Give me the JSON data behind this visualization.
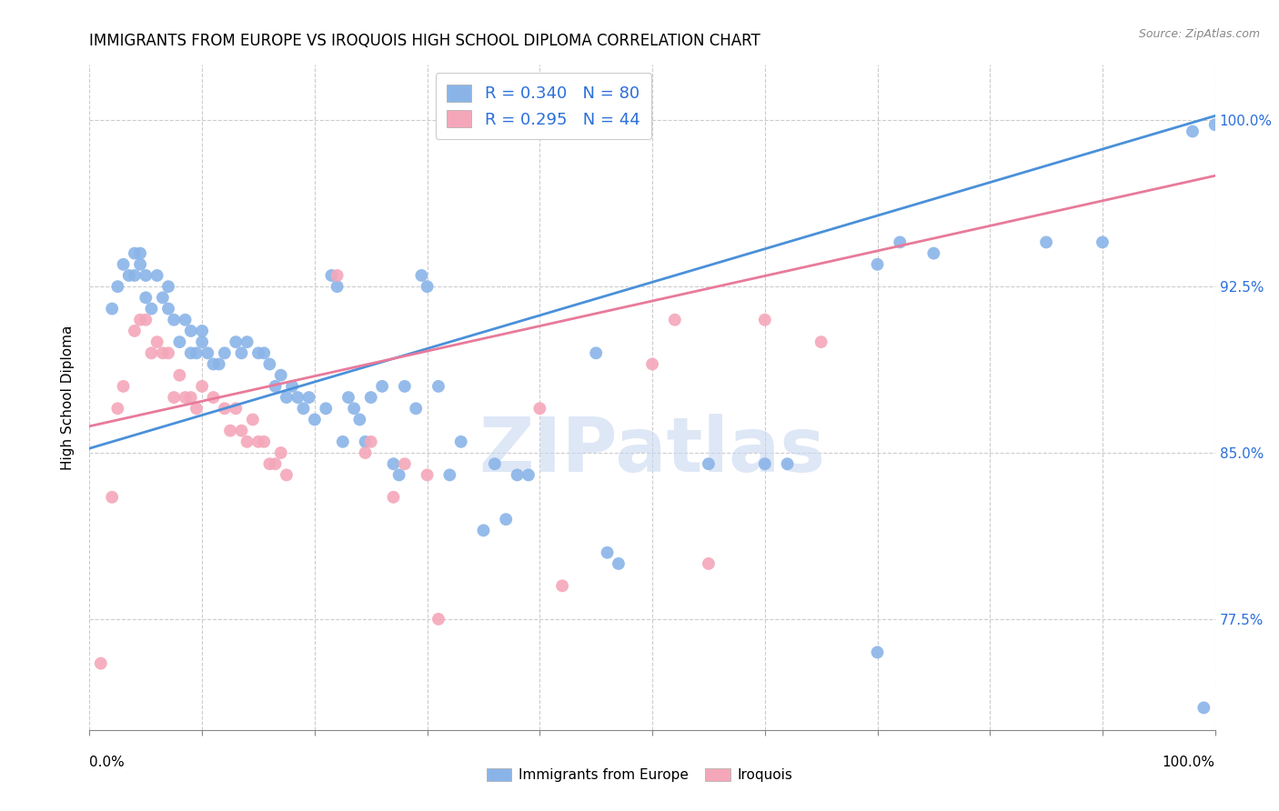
{
  "title": "IMMIGRANTS FROM EUROPE VS IROQUOIS HIGH SCHOOL DIPLOMA CORRELATION CHART",
  "source": "Source: ZipAtlas.com",
  "ylabel": "High School Diploma",
  "ytick_labels": [
    "77.5%",
    "85.0%",
    "92.5%",
    "100.0%"
  ],
  "ytick_values": [
    0.775,
    0.85,
    0.925,
    1.0
  ],
  "xlim": [
    0.0,
    1.0
  ],
  "ylim": [
    0.725,
    1.025
  ],
  "legend_blue_label": "R = 0.340   N = 80",
  "legend_pink_label": "R = 0.295   N = 44",
  "legend_r_color": "#2b6fd9",
  "blue_color": "#8ab4e8",
  "pink_color": "#f4a7b9",
  "blue_line_color": "#4a90d9",
  "pink_line_color": "#e87a9a",
  "watermark": "ZIPatlas",
  "blue_scatter": [
    [
      0.02,
      0.915
    ],
    [
      0.025,
      0.925
    ],
    [
      0.03,
      0.935
    ],
    [
      0.035,
      0.93
    ],
    [
      0.04,
      0.93
    ],
    [
      0.04,
      0.94
    ],
    [
      0.045,
      0.935
    ],
    [
      0.045,
      0.94
    ],
    [
      0.05,
      0.92
    ],
    [
      0.05,
      0.93
    ],
    [
      0.055,
      0.915
    ],
    [
      0.06,
      0.93
    ],
    [
      0.065,
      0.92
    ],
    [
      0.07,
      0.925
    ],
    [
      0.07,
      0.915
    ],
    [
      0.075,
      0.91
    ],
    [
      0.08,
      0.9
    ],
    [
      0.085,
      0.91
    ],
    [
      0.09,
      0.895
    ],
    [
      0.09,
      0.905
    ],
    [
      0.095,
      0.895
    ],
    [
      0.1,
      0.9
    ],
    [
      0.1,
      0.905
    ],
    [
      0.105,
      0.895
    ],
    [
      0.11,
      0.89
    ],
    [
      0.115,
      0.89
    ],
    [
      0.12,
      0.895
    ],
    [
      0.13,
      0.9
    ],
    [
      0.135,
      0.895
    ],
    [
      0.14,
      0.9
    ],
    [
      0.15,
      0.895
    ],
    [
      0.155,
      0.895
    ],
    [
      0.16,
      0.89
    ],
    [
      0.165,
      0.88
    ],
    [
      0.17,
      0.885
    ],
    [
      0.175,
      0.875
    ],
    [
      0.18,
      0.88
    ],
    [
      0.185,
      0.875
    ],
    [
      0.19,
      0.87
    ],
    [
      0.195,
      0.875
    ],
    [
      0.2,
      0.865
    ],
    [
      0.21,
      0.87
    ],
    [
      0.215,
      0.93
    ],
    [
      0.22,
      0.925
    ],
    [
      0.225,
      0.855
    ],
    [
      0.23,
      0.875
    ],
    [
      0.235,
      0.87
    ],
    [
      0.24,
      0.865
    ],
    [
      0.245,
      0.855
    ],
    [
      0.25,
      0.875
    ],
    [
      0.26,
      0.88
    ],
    [
      0.27,
      0.845
    ],
    [
      0.275,
      0.84
    ],
    [
      0.28,
      0.88
    ],
    [
      0.29,
      0.87
    ],
    [
      0.295,
      0.93
    ],
    [
      0.3,
      0.925
    ],
    [
      0.31,
      0.88
    ],
    [
      0.32,
      0.84
    ],
    [
      0.33,
      0.855
    ],
    [
      0.35,
      0.815
    ],
    [
      0.36,
      0.845
    ],
    [
      0.37,
      0.82
    ],
    [
      0.38,
      0.84
    ],
    [
      0.39,
      0.84
    ],
    [
      0.45,
      0.895
    ],
    [
      0.46,
      0.805
    ],
    [
      0.47,
      0.8
    ],
    [
      0.55,
      0.845
    ],
    [
      0.6,
      0.845
    ],
    [
      0.62,
      0.845
    ],
    [
      0.7,
      0.935
    ],
    [
      0.7,
      0.76
    ],
    [
      0.72,
      0.945
    ],
    [
      0.75,
      0.94
    ],
    [
      0.85,
      0.945
    ],
    [
      0.9,
      0.945
    ],
    [
      0.98,
      0.995
    ],
    [
      0.99,
      0.735
    ],
    [
      1.0,
      0.998
    ]
  ],
  "pink_scatter": [
    [
      0.01,
      0.755
    ],
    [
      0.02,
      0.83
    ],
    [
      0.025,
      0.87
    ],
    [
      0.03,
      0.88
    ],
    [
      0.04,
      0.905
    ],
    [
      0.045,
      0.91
    ],
    [
      0.05,
      0.91
    ],
    [
      0.055,
      0.895
    ],
    [
      0.06,
      0.9
    ],
    [
      0.065,
      0.895
    ],
    [
      0.07,
      0.895
    ],
    [
      0.075,
      0.875
    ],
    [
      0.08,
      0.885
    ],
    [
      0.085,
      0.875
    ],
    [
      0.09,
      0.875
    ],
    [
      0.095,
      0.87
    ],
    [
      0.1,
      0.88
    ],
    [
      0.11,
      0.875
    ],
    [
      0.12,
      0.87
    ],
    [
      0.125,
      0.86
    ],
    [
      0.13,
      0.87
    ],
    [
      0.135,
      0.86
    ],
    [
      0.14,
      0.855
    ],
    [
      0.145,
      0.865
    ],
    [
      0.15,
      0.855
    ],
    [
      0.155,
      0.855
    ],
    [
      0.16,
      0.845
    ],
    [
      0.165,
      0.845
    ],
    [
      0.17,
      0.85
    ],
    [
      0.175,
      0.84
    ],
    [
      0.22,
      0.93
    ],
    [
      0.245,
      0.85
    ],
    [
      0.25,
      0.855
    ],
    [
      0.27,
      0.83
    ],
    [
      0.28,
      0.845
    ],
    [
      0.3,
      0.84
    ],
    [
      0.31,
      0.775
    ],
    [
      0.4,
      0.87
    ],
    [
      0.42,
      0.79
    ],
    [
      0.5,
      0.89
    ],
    [
      0.52,
      0.91
    ],
    [
      0.55,
      0.8
    ],
    [
      0.6,
      0.91
    ],
    [
      0.65,
      0.9
    ]
  ],
  "blue_line": {
    "x0": 0.0,
    "y0": 0.852,
    "x1": 1.0,
    "y1": 1.002
  },
  "pink_line": {
    "x0": 0.0,
    "y0": 0.862,
    "x1": 1.0,
    "y1": 0.975
  },
  "xtick_positions": [
    0.0,
    0.1,
    0.2,
    0.3,
    0.4,
    0.5,
    0.6,
    0.7,
    0.8,
    0.9,
    1.0
  ]
}
